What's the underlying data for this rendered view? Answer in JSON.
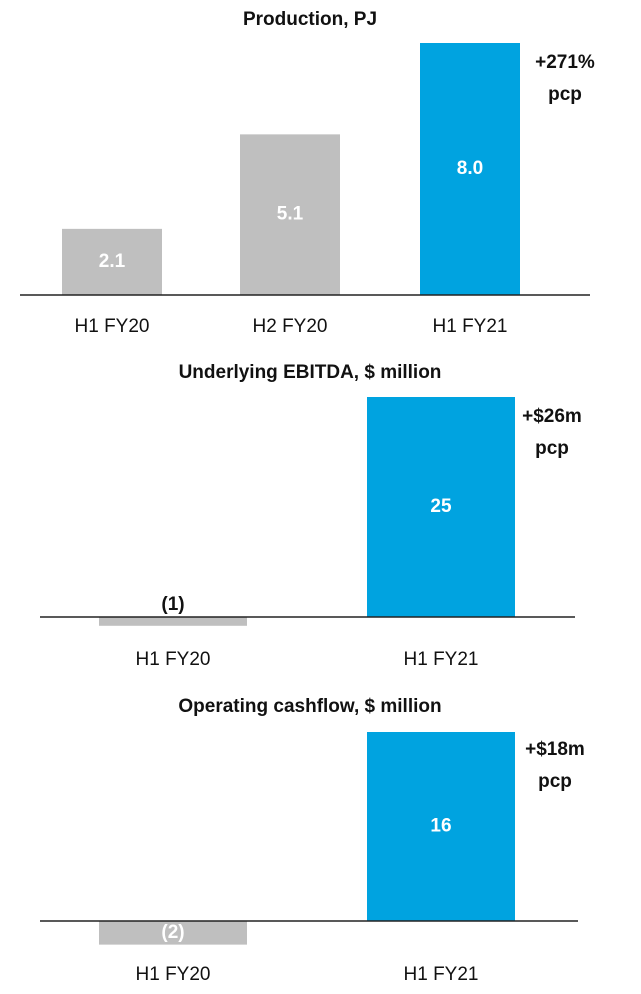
{
  "chart_data": [
    {
      "type": "bar",
      "title": "Production, PJ",
      "categories": [
        "H1 FY20",
        "H2 FY20",
        "H1 FY21"
      ],
      "values": [
        2.1,
        5.1,
        8.0
      ],
      "value_labels": [
        "2.1",
        "5.1",
        "8.0"
      ],
      "colors": [
        "#bfbfbf",
        "#bfbfbf",
        "#00a3e0"
      ],
      "annotation": [
        "+271%",
        "pcp"
      ]
    },
    {
      "type": "bar",
      "title": "Underlying EBITDA, $ million",
      "categories": [
        "H1 FY20",
        "H1 FY21"
      ],
      "values": [
        -1,
        25
      ],
      "value_labels": [
        "(1)",
        "25"
      ],
      "colors": [
        "#bfbfbf",
        "#00a3e0"
      ],
      "annotation": [
        "+$26m",
        "pcp"
      ]
    },
    {
      "type": "bar",
      "title": "Operating cashflow, $ million",
      "categories": [
        "H1 FY20",
        "H1 FY21"
      ],
      "values": [
        -2,
        16
      ],
      "value_labels": [
        "(2)",
        "16"
      ],
      "colors": [
        "#bfbfbf",
        "#00a3e0"
      ],
      "annotation": [
        "+$18m",
        "pcp"
      ]
    }
  ]
}
